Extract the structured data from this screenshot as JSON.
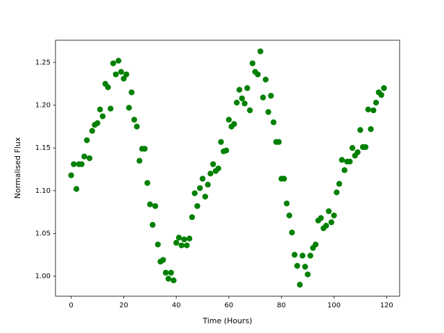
{
  "chart_data": {
    "type": "scatter",
    "x_label": "Time (Hours)",
    "y_label": "Normalised Flux",
    "color": "#008000",
    "x": [
      0,
      1,
      2,
      3,
      4,
      5,
      6,
      7,
      8,
      9,
      10,
      11,
      12,
      13,
      14,
      15,
      16,
      17,
      18,
      19,
      20,
      21,
      22,
      23,
      24,
      25,
      26,
      27,
      28,
      29,
      30,
      31,
      32,
      33,
      34,
      35,
      36,
      37,
      38,
      39,
      40,
      41,
      42,
      43,
      44,
      45,
      46,
      47,
      48,
      49,
      50,
      51,
      52,
      53,
      54,
      55,
      56,
      57,
      58,
      59,
      60,
      61,
      62,
      63,
      64,
      65,
      66,
      67,
      68,
      69,
      70,
      71,
      72,
      73,
      74,
      75,
      76,
      77,
      78,
      79,
      80,
      81,
      82,
      83,
      84,
      85,
      86,
      87,
      88,
      89,
      90,
      91,
      92,
      93,
      94,
      95,
      96,
      97,
      98,
      99,
      100,
      101,
      102,
      103,
      104,
      105,
      106,
      107,
      108,
      109,
      110,
      111,
      112,
      113,
      114,
      115,
      116,
      117,
      118,
      119
    ],
    "values": [
      1.118,
      1.131,
      1.102,
      1.131,
      1.131,
      1.14,
      1.159,
      1.138,
      1.17,
      1.177,
      1.179,
      1.195,
      1.187,
      1.225,
      1.221,
      1.196,
      1.249,
      1.236,
      1.252,
      1.239,
      1.231,
      1.236,
      1.197,
      1.215,
      1.183,
      1.175,
      1.135,
      1.149,
      1.149,
      1.109,
      1.084,
      1.06,
      1.082,
      1.037,
      1.017,
      1.019,
      1.004,
      0.997,
      1.004,
      0.995,
      1.039,
      1.045,
      1.036,
      1.043,
      1.036,
      1.044,
      1.069,
      1.097,
      1.082,
      1.103,
      1.114,
      1.093,
      1.107,
      1.12,
      1.131,
      1.123,
      1.126,
      1.157,
      1.146,
      1.147,
      1.183,
      1.175,
      1.178,
      1.203,
      1.218,
      1.208,
      1.202,
      1.22,
      1.194,
      1.249,
      1.239,
      1.236,
      1.263,
      1.209,
      1.23,
      1.192,
      1.211,
      1.18,
      1.157,
      1.157,
      1.114,
      1.114,
      1.085,
      1.071,
      1.051,
      1.025,
      1.012,
      0.99,
      1.024,
      1.011,
      1.002,
      1.024,
      1.033,
      1.037,
      1.065,
      1.068,
      1.056,
      1.059,
      1.076,
      1.063,
      1.071,
      1.098,
      1.108,
      1.136,
      1.124,
      1.134,
      1.134,
      1.15,
      1.141,
      1.145,
      1.171,
      1.151,
      1.151,
      1.195,
      1.172,
      1.194,
      1.203,
      1.215,
      1.212,
      1.22
    ],
    "xlim": [
      -5.95,
      124.95
    ],
    "ylim": [
      0.9765,
      1.276
    ],
    "xticks": [
      0,
      20,
      40,
      60,
      80,
      100,
      120
    ],
    "yticks": [
      {
        "value": 1.0,
        "label": "1.00"
      },
      1.05,
      {
        "value": 1.1,
        "label": "1.10"
      },
      1.15,
      {
        "value": 1.2,
        "label": "1.20"
      },
      1.25
    ],
    "grid": false
  }
}
